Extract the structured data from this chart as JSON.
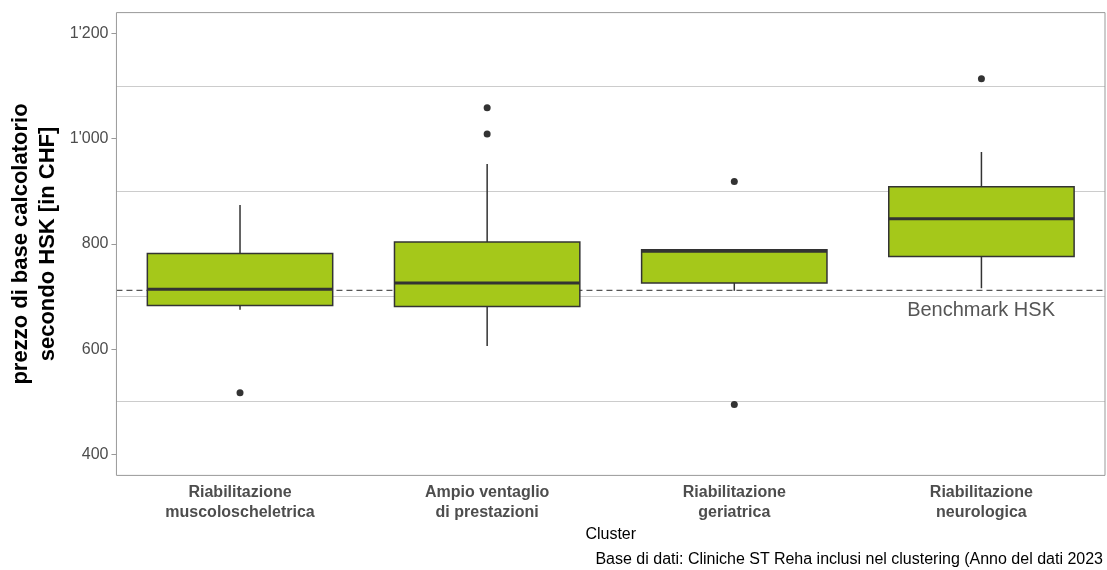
{
  "chart_data": {
    "type": "box",
    "ylabel": "prezzo di base calcolatorio secondo HSK [in CHF]",
    "xlabel": "Cluster",
    "categories": [
      "Riabilitazione muscoloscheletrica",
      "Ampio ventaglio di prestazioni",
      "Riabilitazione geriatrica",
      "Riabilitazione neurologica"
    ],
    "series": [
      {
        "color": "#a5c81a",
        "boxes": [
          {
            "low": 675,
            "q1": 683,
            "median": 714,
            "q3": 782,
            "high": 874,
            "outliers": [
              517
            ]
          },
          {
            "low": 606,
            "q1": 681,
            "median": 726,
            "q3": 804,
            "high": 952,
            "outliers": [
              1009,
              1059
            ]
          },
          {
            "low": 711,
            "q1": 726,
            "median": 786,
            "q3": 789,
            "high": 789,
            "outliers": [
              495,
              919
            ]
          },
          {
            "low": 716,
            "q1": 776,
            "median": 848,
            "q3": 909,
            "high": 975,
            "outliers": [
              1114
            ]
          }
        ]
      }
    ],
    "ylim": [
      360,
      1240
    ],
    "yticks": [
      400,
      {
        "value": 500,
        "label": null
      },
      600,
      {
        "value": 700,
        "label": null
      },
      800,
      {
        "value": 900,
        "label": null
      },
      {
        "value": 1000,
        "label": "1'000"
      },
      {
        "value": 1100,
        "label": null
      },
      {
        "value": 1200,
        "label": "1'200"
      }
    ],
    "grid": "y",
    "ref_lines": [
      {
        "axis": "y",
        "value": 712,
        "label": "Benchmark HSK",
        "color": "#555555",
        "line_style": "dashed"
      }
    ],
    "annotations": [
      "Base di dati: Cliniche ST Reha inclusi nel clustering (Anno del dati 2023"
    ]
  }
}
